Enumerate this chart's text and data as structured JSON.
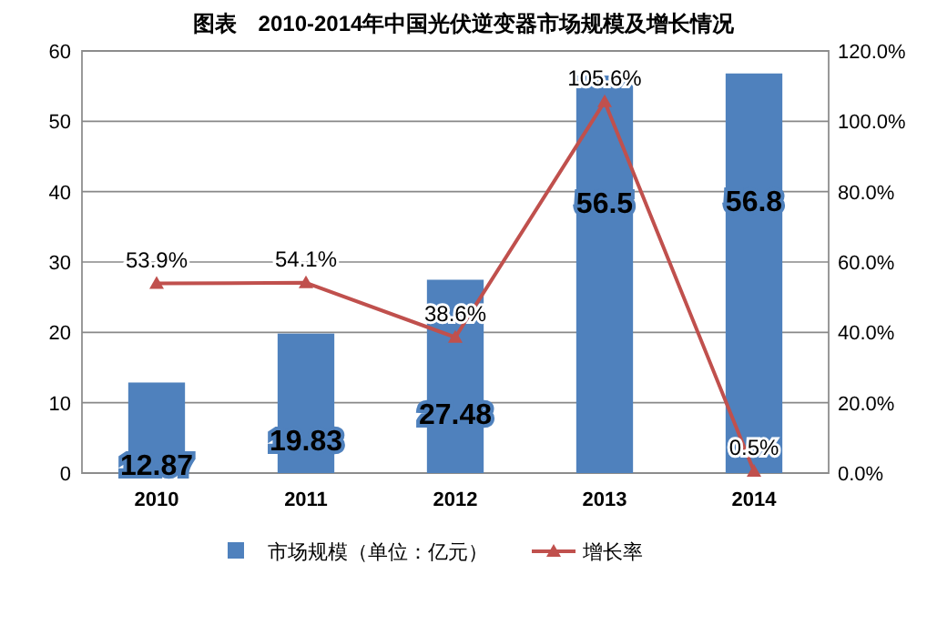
{
  "chart_data": {
    "type": "bar",
    "title": "图表　2010-2014年中国光伏逆变器市场规模及增长情况",
    "categories": [
      "2010",
      "2011",
      "2012",
      "2013",
      "2014"
    ],
    "series": [
      {
        "name": "市场规模（单位：亿元）",
        "color": "#4f81bd",
        "values": [
          12.87,
          19.83,
          27.48,
          56.5,
          56.8
        ],
        "value_labels": [
          "12.87",
          "19.83",
          "27.48",
          "56.5",
          "56.8"
        ]
      },
      {
        "name": "增长率",
        "type": "line",
        "axis": "y2",
        "color": "#c0504d",
        "marker": "triangle",
        "values": [
          53.9,
          54.1,
          38.6,
          105.6,
          0.5
        ],
        "value_labels": [
          "53.9%",
          "54.1%",
          "38.6%",
          "105.6%",
          "0.5%"
        ]
      }
    ],
    "ylim": [
      0,
      60
    ],
    "yticks": [
      0,
      10,
      20,
      30,
      40,
      50,
      60
    ],
    "y2lim": [
      0,
      120
    ],
    "y2ticks": [
      {
        "value": 0,
        "label": "0.0%"
      },
      {
        "value": 20,
        "label": "20.0%"
      },
      {
        "value": 40,
        "label": "40.0%"
      },
      {
        "value": 60,
        "label": "60.0%"
      },
      {
        "value": 80,
        "label": "80.0%"
      },
      {
        "value": 100,
        "label": "100.0%"
      },
      {
        "value": 120,
        "label": "120.0%"
      }
    ],
    "grid": "y",
    "legend": "bottom"
  }
}
